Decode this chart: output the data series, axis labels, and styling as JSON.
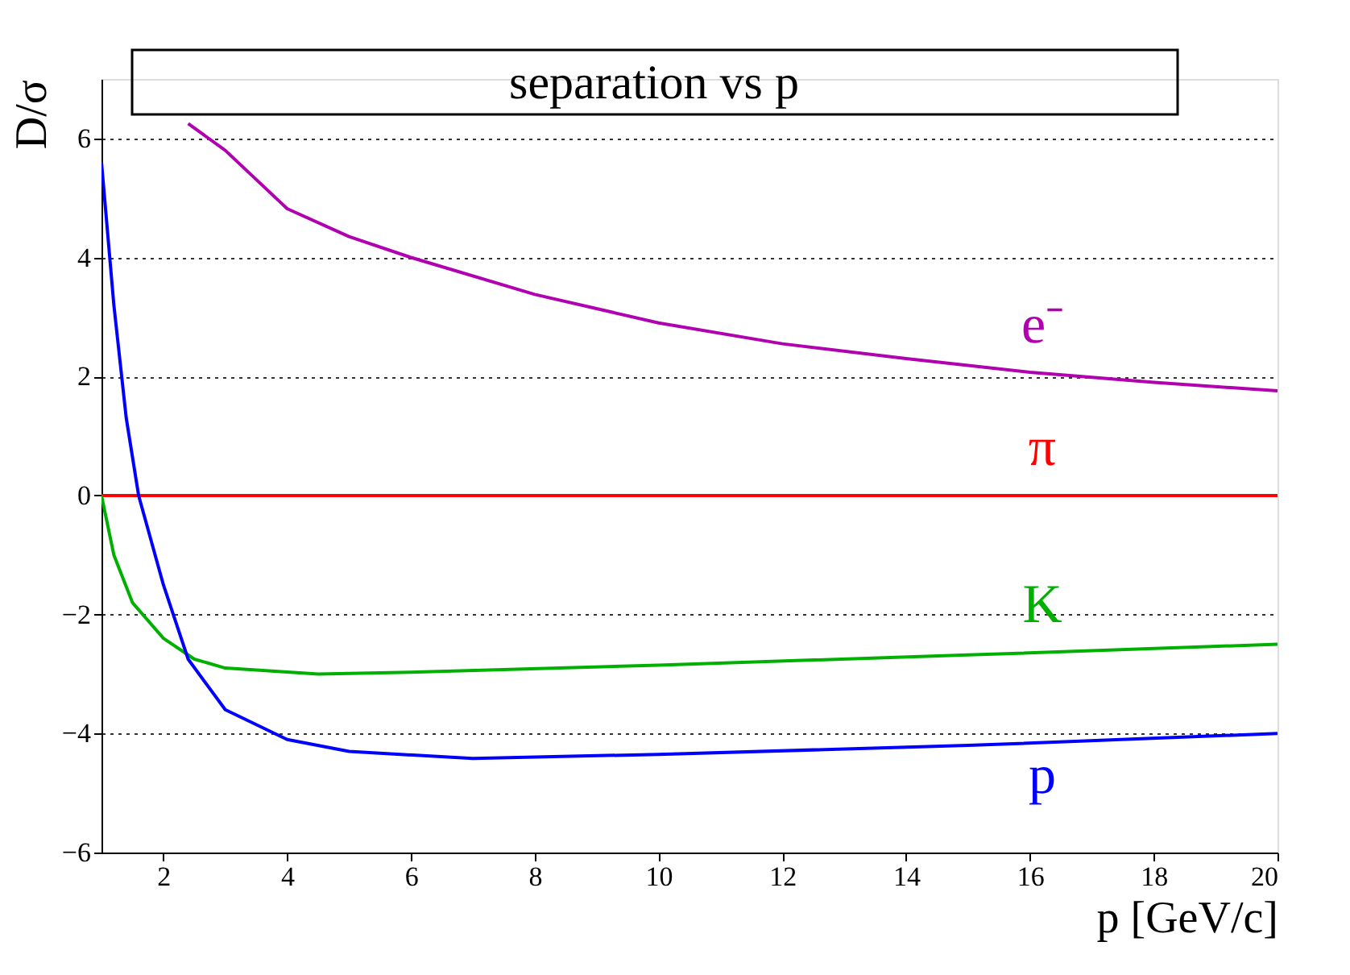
{
  "chart_data": {
    "type": "line",
    "title": "separation vs p",
    "xlabel": "p [GeV/c]",
    "ylabel": "D/σ",
    "xlim": [
      1,
      20
    ],
    "ylim": [
      -6,
      7
    ],
    "xticks": [
      2,
      4,
      6,
      8,
      10,
      12,
      14,
      16,
      18,
      20
    ],
    "yticks": [
      -6,
      -4,
      -2,
      0,
      2,
      4,
      6
    ],
    "grid": "y",
    "marker": "none",
    "line_style": "solid",
    "series": [
      {
        "name": "e⁻",
        "color": "#b000b0",
        "x": [
          2.4,
          3,
          4,
          5,
          6,
          8,
          10,
          12,
          14,
          16,
          18,
          20
        ],
        "values": [
          6.25,
          5.8,
          4.82,
          4.35,
          4.0,
          3.38,
          2.9,
          2.55,
          2.3,
          2.07,
          1.9,
          1.76
        ]
      },
      {
        "name": "π",
        "color": "#ff0000",
        "x": [
          1,
          20
        ],
        "values": [
          0,
          0
        ]
      },
      {
        "name": "K",
        "color": "#00b000",
        "x": [
          1,
          1.2,
          1.5,
          2,
          2.5,
          3,
          4.5,
          6,
          10,
          15,
          20
        ],
        "values": [
          0,
          -1.0,
          -1.8,
          -2.4,
          -2.75,
          -2.9,
          -3.0,
          -2.97,
          -2.85,
          -2.68,
          -2.5
        ]
      },
      {
        "name": "p",
        "color": "#0000ff",
        "x": [
          1,
          1.2,
          1.4,
          1.6,
          2,
          2.4,
          3,
          4,
          5,
          7,
          10,
          15,
          20
        ],
        "values": [
          5.6,
          3.2,
          1.3,
          0,
          -1.5,
          -2.75,
          -3.6,
          -4.1,
          -4.3,
          -4.42,
          -4.35,
          -4.2,
          -4.0
        ]
      }
    ]
  }
}
